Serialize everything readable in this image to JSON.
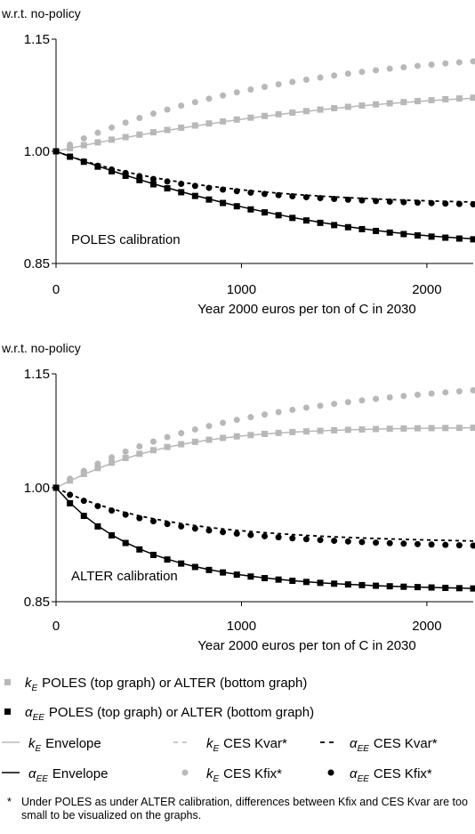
{
  "chart_data": [
    {
      "type": "line",
      "ylabel": "w.r.t. no-policy",
      "xlabel": "Year 2000 euros per ton of C in 2030",
      "annotation": "POLES calibration",
      "x_ticks": [
        "0",
        "1000",
        "2000"
      ],
      "y_ticks": [
        "0.85",
        "1.00",
        "1.15"
      ],
      "xlim": [
        0,
        2250
      ],
      "ylim": [
        0.85,
        1.15
      ],
      "x": [
        0,
        75,
        150,
        225,
        300,
        375,
        450,
        525,
        600,
        675,
        750,
        825,
        900,
        975,
        1050,
        1125,
        1200,
        1275,
        1350,
        1425,
        1500,
        1575,
        1650,
        1725,
        1800,
        1875,
        1950,
        2025,
        2100,
        2175,
        2250
      ],
      "series": [
        {
          "key": "kE_env",
          "values": [
            1.0,
            1.004,
            1.0078,
            1.0115,
            1.015,
            1.0184,
            1.0217,
            1.0249,
            1.028,
            1.031,
            1.0339,
            1.0367,
            1.0394,
            1.042,
            1.0445,
            1.0469,
            1.0492,
            1.0514,
            1.0535,
            1.0555,
            1.0574,
            1.0592,
            1.0609,
            1.0625,
            1.064,
            1.0654,
            1.0667,
            1.0679,
            1.069,
            1.07,
            1.071
          ]
        },
        {
          "key": "kE_poles",
          "values": [
            1.0,
            1.0042,
            1.0082,
            1.012,
            1.0156,
            1.019,
            1.0223,
            1.0255,
            1.0286,
            1.0316,
            1.0345,
            1.0373,
            1.04,
            1.0425,
            1.045,
            1.0473,
            1.0496,
            1.0518,
            1.0538,
            1.0558,
            1.0577,
            1.0595,
            1.0612,
            1.0628,
            1.0643,
            1.0658,
            1.0671,
            1.0684,
            1.0696,
            1.0707,
            1.0717
          ]
        },
        {
          "key": "kE_kfix",
          "values": [
            1.0,
            1.009,
            1.0172,
            1.0248,
            1.0318,
            1.0384,
            1.0446,
            1.0504,
            1.0558,
            1.061,
            1.0658,
            1.0704,
            1.0747,
            1.0788,
            1.0826,
            1.0862,
            1.0896,
            1.0928,
            1.0958,
            1.0986,
            1.1013,
            1.1038,
            1.1062,
            1.1084,
            1.1105,
            1.1124,
            1.1142,
            1.1159,
            1.1175,
            1.119,
            1.1204
          ]
        },
        {
          "key": "aEE_kvar",
          "values": [
            1.0,
            0.9932,
            0.9872,
            0.9818,
            0.977,
            0.9726,
            0.9686,
            0.965,
            0.9617,
            0.9587,
            0.956,
            0.9535,
            0.9513,
            0.9492,
            0.9473,
            0.9456,
            0.944,
            0.9426,
            0.9413,
            0.9401,
            0.939,
            0.938,
            0.9371,
            0.9363,
            0.9355,
            0.9348,
            0.9342,
            0.9336,
            0.9331,
            0.9326,
            0.9321
          ]
        },
        {
          "key": "aEE_kfix",
          "values": [
            1.0,
            0.9928,
            0.9864,
            0.9807,
            0.9756,
            0.971,
            0.9668,
            0.963,
            0.9596,
            0.9565,
            0.9537,
            0.9511,
            0.9488,
            0.9467,
            0.9448,
            0.943,
            0.9414,
            0.9399,
            0.9386,
            0.9374,
            0.9363,
            0.9353,
            0.9344,
            0.9335,
            0.9327,
            0.932,
            0.9313,
            0.9307,
            0.9301,
            0.9296,
            0.9291
          ]
        },
        {
          "key": "aEE_env",
          "values": [
            1.0,
            0.9932,
            0.9866,
            0.9802,
            0.974,
            0.968,
            0.9622,
            0.9566,
            0.9512,
            0.946,
            0.941,
            0.9362,
            0.9316,
            0.9272,
            0.923,
            0.919,
            0.9152,
            0.9116,
            0.9082,
            0.905,
            0.902,
            0.8992,
            0.8966,
            0.8942,
            0.892,
            0.89,
            0.8882,
            0.8866,
            0.8852,
            0.884,
            0.883
          ]
        },
        {
          "key": "aEE_poles",
          "values": [
            1.0,
            0.9928,
            0.986,
            0.9795,
            0.9733,
            0.9673,
            0.9615,
            0.9559,
            0.9505,
            0.9453,
            0.9403,
            0.9355,
            0.9309,
            0.9265,
            0.9223,
            0.9183,
            0.9145,
            0.9109,
            0.9075,
            0.9043,
            0.9013,
            0.8985,
            0.8959,
            0.8935,
            0.8913,
            0.8893,
            0.8875,
            0.8859,
            0.8845,
            0.8833,
            0.8823
          ]
        }
      ]
    },
    {
      "type": "line",
      "ylabel": "w.r.t. no-policy",
      "xlabel": "Year 2000 euros per ton of C in 2030",
      "annotation": "ALTER calibration",
      "x_ticks": [
        "0",
        "1000",
        "2000"
      ],
      "y_ticks": [
        "0.85",
        "1.00",
        "1.15"
      ],
      "xlim": [
        0,
        2250
      ],
      "ylim": [
        0.85,
        1.15
      ],
      "x": [
        0,
        75,
        150,
        225,
        300,
        375,
        450,
        525,
        600,
        675,
        750,
        825,
        900,
        975,
        1050,
        1125,
        1200,
        1275,
        1350,
        1425,
        1500,
        1575,
        1650,
        1725,
        1800,
        1875,
        1950,
        2025,
        2100,
        2175,
        2250
      ],
      "series": [
        {
          "key": "kE_env",
          "values": [
            1.0,
            1.009,
            1.0175,
            1.0252,
            1.0322,
            1.0385,
            1.0441,
            1.049,
            1.0533,
            1.057,
            1.0602,
            1.063,
            1.0654,
            1.0675,
            1.0693,
            1.0708,
            1.0721,
            1.0732,
            1.0742,
            1.075,
            1.0757,
            1.0763,
            1.0768,
            1.0772,
            1.0776,
            1.0779,
            1.0782,
            1.0784,
            1.0786,
            1.0788,
            1.079
          ]
        },
        {
          "key": "kE_alter",
          "values": [
            1.0,
            1.0095,
            1.0182,
            1.026,
            1.033,
            1.0392,
            1.0447,
            1.0495,
            1.0537,
            1.0573,
            1.0605,
            1.0632,
            1.0656,
            1.0677,
            1.0694,
            1.0709,
            1.0722,
            1.0733,
            1.0742,
            1.075,
            1.0757,
            1.0763,
            1.0768,
            1.0773,
            1.0777,
            1.078,
            1.0783,
            1.0785,
            1.0787,
            1.0789,
            1.079
          ]
        },
        {
          "key": "kE_kfix",
          "values": [
            1.0,
            1.0118,
            1.0222,
            1.0316,
            1.04,
            1.0476,
            1.0545,
            1.0608,
            1.0666,
            1.0719,
            1.0768,
            1.0813,
            1.0855,
            1.0894,
            1.093,
            1.0964,
            1.0996,
            1.1026,
            1.1054,
            1.108,
            1.1105,
            1.1128,
            1.115,
            1.1171,
            1.119,
            1.1208,
            1.1225,
            1.1241,
            1.1256,
            1.127,
            1.1283
          ]
        },
        {
          "key": "aEE_kvar",
          "values": [
            1.0,
            0.9915,
            0.9842,
            0.9778,
            0.9722,
            0.9673,
            0.963,
            0.9592,
            0.9558,
            0.9528,
            0.9502,
            0.9479,
            0.9458,
            0.944,
            0.9424,
            0.9409,
            0.9396,
            0.9384,
            0.9373,
            0.9363,
            0.9354,
            0.9346,
            0.9339,
            0.9332,
            0.9326,
            0.9321,
            0.9316,
            0.9311,
            0.9307,
            0.9303,
            0.9299
          ]
        },
        {
          "key": "aEE_kfix",
          "values": [
            1.0,
            0.9908,
            0.9828,
            0.9759,
            0.9699,
            0.9646,
            0.96,
            0.9559,
            0.9523,
            0.9491,
            0.9463,
            0.9438,
            0.9416,
            0.9396,
            0.9378,
            0.9362,
            0.9348,
            0.9335,
            0.9323,
            0.9312,
            0.9302,
            0.9293,
            0.9285,
            0.9277,
            0.927,
            0.9264,
            0.9258,
            0.9253,
            0.9248,
            0.9243,
            0.9239
          ]
        },
        {
          "key": "aEE_env",
          "values": [
            1.0,
            0.9802,
            0.9637,
            0.9498,
            0.938,
            0.928,
            0.9195,
            0.9122,
            0.906,
            0.9007,
            0.8962,
            0.8923,
            0.8889,
            0.886,
            0.8835,
            0.8813,
            0.8794,
            0.8777,
            0.8762,
            0.8749,
            0.8738,
            0.8728,
            0.8719,
            0.8711,
            0.8704,
            0.8698,
            0.8692,
            0.8687,
            0.8683,
            0.8679,
            0.8675
          ]
        },
        {
          "key": "aEE_alter",
          "values": [
            1.0,
            0.9796,
            0.963,
            0.9491,
            0.9373,
            0.9273,
            0.9188,
            0.9116,
            0.9055,
            0.9002,
            0.8957,
            0.8918,
            0.8885,
            0.8856,
            0.8831,
            0.881,
            0.8791,
            0.8775,
            0.876,
            0.8748,
            0.8737,
            0.8727,
            0.8718,
            0.871,
            0.8703,
            0.8697,
            0.8692,
            0.8687,
            0.8682,
            0.8678,
            0.8674
          ]
        }
      ]
    }
  ],
  "legend": {
    "row1_text": "POLES (top graph) or ALTER (bottom graph)",
    "row2_text": "POLES (top graph) or ALTER (bottom graph)",
    "envelope": "Envelope",
    "ces_kvar": "CES Kvar*",
    "ces_kfix": "CES Kfix*",
    "kE_symbol_main": "k",
    "kE_symbol_sub": "E",
    "aEE_symbol_main": "α",
    "aEE_symbol_sub": "EE"
  },
  "footnote": {
    "star": "*",
    "text": "Under POLES as under ALTER calibration, differences between Kfix and CES Kvar are too small to be visualized on the graphs."
  },
  "colors": {
    "grey": "#b8b8b8",
    "black": "#000000"
  }
}
